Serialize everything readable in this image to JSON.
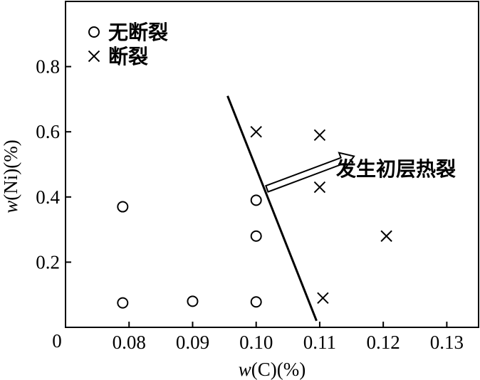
{
  "chart_data": {
    "type": "scatter",
    "xlabel": "w(C)(%)",
    "ylabel": "w(Ni)(%)",
    "xlim": [
      0.07,
      0.135
    ],
    "ylim": [
      0,
      1.0
    ],
    "origin_label": "0",
    "x_ticks": [
      {
        "value": 0.08,
        "label": "0.08"
      },
      {
        "value": 0.09,
        "label": "0.09"
      },
      {
        "value": 0.1,
        "label": "0.10"
      },
      {
        "value": 0.11,
        "label": "0.11"
      },
      {
        "value": 0.12,
        "label": "0.12"
      },
      {
        "value": 0.13,
        "label": "0.13"
      }
    ],
    "y_ticks": [
      {
        "value": 0.2,
        "label": "0.2"
      },
      {
        "value": 0.4,
        "label": "0.4"
      },
      {
        "value": 0.6,
        "label": "0.6"
      },
      {
        "value": 0.8,
        "label": "0.8"
      }
    ],
    "grid": false,
    "legend_position": "top-left",
    "series": [
      {
        "name": "无断裂",
        "marker": "circle",
        "points": [
          {
            "x": 0.079,
            "y": 0.37
          },
          {
            "x": 0.079,
            "y": 0.075
          },
          {
            "x": 0.09,
            "y": 0.08
          },
          {
            "x": 0.1,
            "y": 0.39
          },
          {
            "x": 0.1,
            "y": 0.28
          },
          {
            "x": 0.1,
            "y": 0.078
          }
        ]
      },
      {
        "name": "断裂",
        "marker": "cross",
        "points": [
          {
            "x": 0.1,
            "y": 0.6
          },
          {
            "x": 0.11,
            "y": 0.59
          },
          {
            "x": 0.11,
            "y": 0.43
          },
          {
            "x": 0.1105,
            "y": 0.09
          },
          {
            "x": 0.1205,
            "y": 0.28
          }
        ]
      }
    ],
    "boundary_line": {
      "x1": 0.0955,
      "y1": 0.71,
      "x2": 0.1095,
      "y2": 0.02
    },
    "annotation": {
      "text": "发生初层热裂",
      "arrow_from": {
        "x": 0.1017,
        "y": 0.425
      },
      "arrow_to": {
        "x": 0.1154,
        "y": 0.525
      }
    }
  }
}
